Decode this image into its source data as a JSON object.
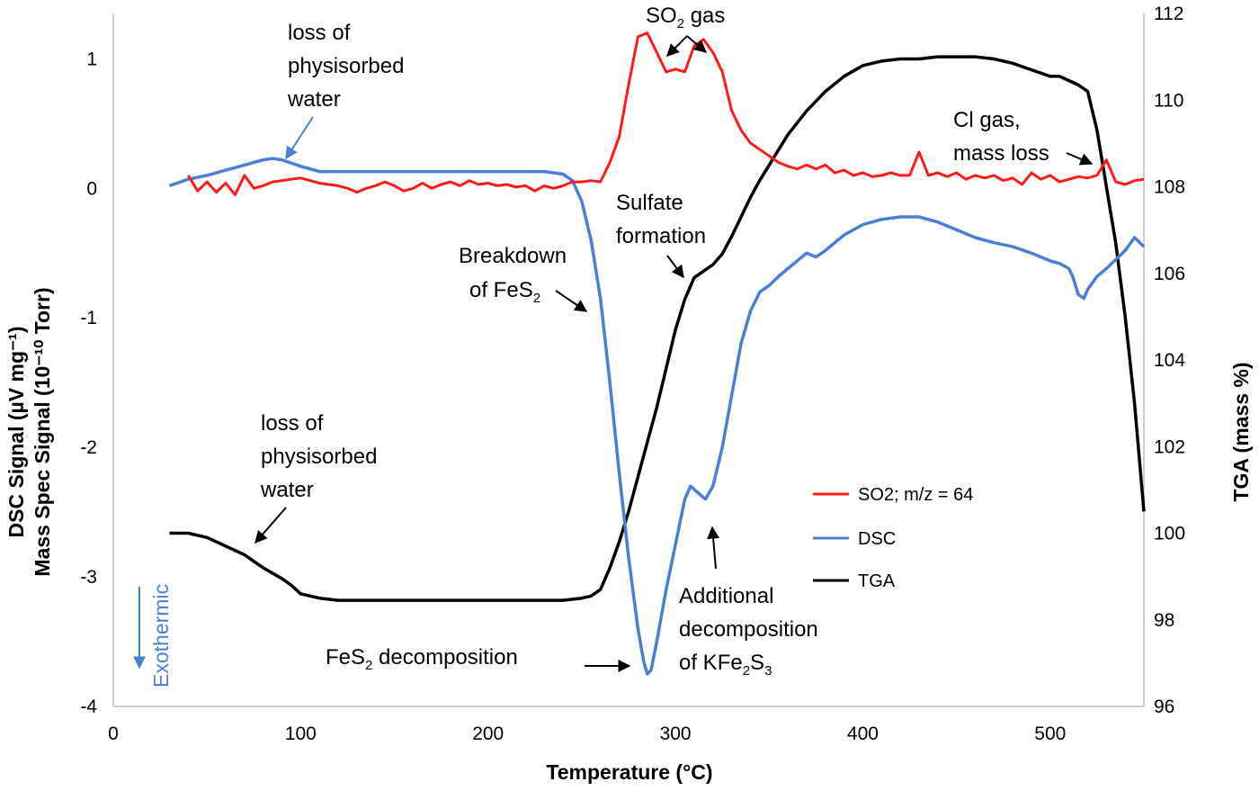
{
  "chart_data": {
    "type": "line",
    "xlabel": "Temperature (°C)",
    "ylabel_left": [
      "DSC Signal (µV mg⁻¹)",
      "Mass Spec Signal (10⁻¹⁰ Torr)"
    ],
    "ylabel_right": "TGA (mass %)",
    "xlim": [
      0,
      550
    ],
    "xticks": [
      0,
      100,
      200,
      300,
      400,
      500
    ],
    "ylim_left": [
      -4,
      1.35
    ],
    "yticks_left": [
      1,
      0,
      -1,
      -2,
      -3,
      -4
    ],
    "ylim_right": [
      96,
      112
    ],
    "yticks_right": [
      96,
      98,
      100,
      102,
      104,
      106,
      108,
      110,
      112
    ],
    "grid": false,
    "legend_position": "right",
    "series": [
      {
        "name": "SO2; m/z = 64",
        "color": "#ff1a1a",
        "axis": "left",
        "x": [
          40,
          45,
          50,
          55,
          60,
          65,
          70,
          75,
          80,
          85,
          90,
          95,
          100,
          105,
          110,
          115,
          120,
          125,
          130,
          135,
          140,
          145,
          150,
          155,
          160,
          165,
          170,
          175,
          180,
          185,
          190,
          195,
          200,
          205,
          210,
          215,
          220,
          225,
          230,
          235,
          240,
          245,
          250,
          255,
          260,
          265,
          270,
          275,
          280,
          285,
          290,
          295,
          300,
          305,
          310,
          315,
          320,
          325,
          330,
          335,
          340,
          345,
          350,
          355,
          360,
          365,
          370,
          375,
          380,
          385,
          390,
          395,
          400,
          405,
          410,
          415,
          420,
          425,
          430,
          435,
          440,
          445,
          450,
          455,
          460,
          465,
          470,
          475,
          480,
          485,
          490,
          495,
          500,
          505,
          510,
          515,
          520,
          525,
          530,
          535,
          540,
          545,
          550
        ],
        "y": [
          0.1,
          -0.02,
          0.05,
          -0.03,
          0.04,
          -0.05,
          0.1,
          0.0,
          0.02,
          0.05,
          0.06,
          0.07,
          0.08,
          0.06,
          0.04,
          0.03,
          0.02,
          0.0,
          -0.03,
          0.0,
          0.02,
          0.05,
          0.02,
          -0.02,
          0.0,
          0.04,
          0.0,
          0.03,
          0.05,
          0.02,
          0.06,
          0.03,
          0.04,
          0.02,
          0.03,
          0.01,
          0.02,
          -0.02,
          0.02,
          0.0,
          0.02,
          0.05,
          0.05,
          0.06,
          0.05,
          0.2,
          0.4,
          0.8,
          1.17,
          1.2,
          1.05,
          0.9,
          0.92,
          0.9,
          1.1,
          1.15,
          1.05,
          0.9,
          0.6,
          0.45,
          0.35,
          0.3,
          0.25,
          0.2,
          0.17,
          0.15,
          0.18,
          0.15,
          0.18,
          0.12,
          0.14,
          0.1,
          0.12,
          0.09,
          0.1,
          0.12,
          0.1,
          0.1,
          0.28,
          0.1,
          0.12,
          0.09,
          0.12,
          0.07,
          0.1,
          0.08,
          0.1,
          0.06,
          0.08,
          0.03,
          0.12,
          0.07,
          0.1,
          0.05,
          0.07,
          0.09,
          0.08,
          0.1,
          0.22,
          0.05,
          0.03,
          0.06,
          0.07
        ]
      },
      {
        "name": "DSC",
        "color": "#4a7fd4",
        "axis": "left",
        "x": [
          30,
          40,
          50,
          60,
          70,
          80,
          85,
          90,
          100,
          110,
          120,
          130,
          140,
          150,
          160,
          170,
          180,
          190,
          200,
          210,
          220,
          230,
          240,
          245,
          250,
          255,
          260,
          265,
          270,
          275,
          280,
          283,
          285,
          287,
          290,
          295,
          300,
          305,
          308,
          312,
          316,
          320,
          325,
          330,
          335,
          340,
          345,
          350,
          355,
          360,
          370,
          375,
          380,
          385,
          390,
          395,
          400,
          410,
          420,
          430,
          440,
          450,
          460,
          470,
          480,
          490,
          500,
          505,
          510,
          512,
          515,
          518,
          520,
          525,
          530,
          540,
          545,
          550
        ],
        "y": [
          0.02,
          0.07,
          0.1,
          0.14,
          0.18,
          0.22,
          0.23,
          0.22,
          0.17,
          0.13,
          0.13,
          0.13,
          0.13,
          0.13,
          0.13,
          0.13,
          0.13,
          0.13,
          0.13,
          0.13,
          0.13,
          0.13,
          0.11,
          0.06,
          -0.1,
          -0.4,
          -0.85,
          -1.5,
          -2.2,
          -2.85,
          -3.4,
          -3.65,
          -3.75,
          -3.72,
          -3.5,
          -3.1,
          -2.75,
          -2.4,
          -2.3,
          -2.35,
          -2.4,
          -2.3,
          -2.0,
          -1.6,
          -1.2,
          -0.95,
          -0.8,
          -0.75,
          -0.68,
          -0.62,
          -0.5,
          -0.53,
          -0.48,
          -0.42,
          -0.36,
          -0.32,
          -0.28,
          -0.24,
          -0.22,
          -0.22,
          -0.26,
          -0.32,
          -0.38,
          -0.42,
          -0.45,
          -0.5,
          -0.56,
          -0.58,
          -0.62,
          -0.68,
          -0.82,
          -0.85,
          -0.78,
          -0.68,
          -0.62,
          -0.48,
          -0.38,
          -0.45
        ]
      },
      {
        "name": "TGA",
        "color": "#000000",
        "axis": "right",
        "x": [
          30,
          40,
          50,
          60,
          70,
          80,
          90,
          95,
          100,
          110,
          120,
          150,
          200,
          220,
          240,
          250,
          255,
          260,
          265,
          270,
          275,
          280,
          285,
          290,
          295,
          300,
          305,
          310,
          315,
          320,
          325,
          330,
          335,
          340,
          345,
          350,
          355,
          360,
          370,
          380,
          390,
          400,
          410,
          420,
          430,
          440,
          450,
          460,
          470,
          480,
          490,
          500,
          505,
          510,
          515,
          520,
          525,
          530,
          535,
          540,
          545,
          550
        ],
        "y": [
          100.0,
          100.0,
          99.9,
          99.7,
          99.5,
          99.2,
          98.95,
          98.8,
          98.6,
          98.5,
          98.45,
          98.45,
          98.45,
          98.45,
          98.45,
          98.5,
          98.55,
          98.7,
          99.2,
          99.8,
          100.5,
          101.3,
          102.1,
          102.9,
          103.8,
          104.7,
          105.4,
          105.9,
          106.05,
          106.2,
          106.45,
          106.85,
          107.3,
          107.75,
          108.15,
          108.5,
          108.85,
          109.2,
          109.75,
          110.2,
          110.55,
          110.8,
          110.9,
          110.95,
          110.95,
          111.0,
          111.0,
          111.0,
          110.95,
          110.85,
          110.7,
          110.55,
          110.55,
          110.45,
          110.35,
          110.2,
          109.3,
          108.0,
          106.7,
          105.0,
          103.0,
          100.5
        ]
      }
    ],
    "annotations": {
      "water_top": [
        "loss of",
        "physisorbed",
        "water"
      ],
      "so2_gas": {
        "base": "SO",
        "sub": "2",
        "tail": " gas"
      },
      "cl_gas": [
        "Cl gas,",
        "mass loss"
      ],
      "sulfate": [
        "Sulfate",
        "formation"
      ],
      "breakdown": {
        "line1": "Breakdown",
        "line2_base": "of FeS",
        "line2_sub": "2"
      },
      "water_bottom": [
        "loss of",
        "physisorbed",
        "water"
      ],
      "fes2_decomp": {
        "base": "FeS",
        "sub": "2",
        "tail": " decomposition"
      },
      "additional": {
        "line1": "Additional",
        "line2": "decomposition",
        "line3_parts": [
          "of KFe",
          "2",
          "S",
          "3"
        ]
      },
      "exothermic": "Exothermic"
    },
    "legend_entries": [
      "SO2; m/z = 64",
      "DSC",
      "TGA"
    ]
  }
}
